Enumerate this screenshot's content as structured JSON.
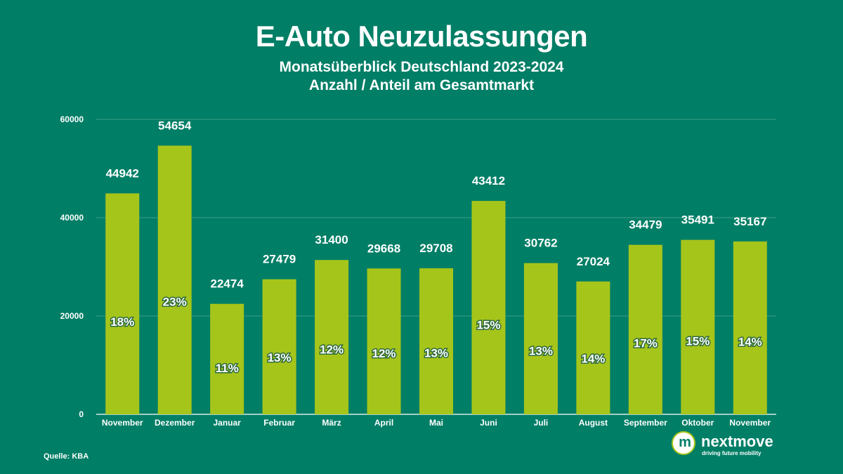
{
  "header": {
    "title": "E-Auto Neuzulassungen",
    "subtitle_line1": "Monatsüberblick Deutschland 2023-2024",
    "subtitle_line2": "Anzahl / Anteil am Gesamtmarkt"
  },
  "chart_data": {
    "type": "bar",
    "title": "E-Auto Neuzulassungen",
    "categories": [
      "November",
      "Dezember",
      "Januar",
      "Februar",
      "März",
      "April",
      "Mai",
      "Juni",
      "Juli",
      "August",
      "September",
      "Oktober",
      "November"
    ],
    "series": [
      {
        "name": "Anzahl",
        "values": [
          44942,
          54654,
          22474,
          27479,
          31400,
          29668,
          29708,
          43412,
          30762,
          27024,
          34479,
          35491,
          35167
        ]
      },
      {
        "name": "Anteil am Gesamtmarkt",
        "values": [
          "18%",
          "23%",
          "11%",
          "13%",
          "12%",
          "12%",
          "13%",
          "15%",
          "13%",
          "14%",
          "17%",
          "15%",
          "14%"
        ]
      }
    ],
    "yticks": [
      0,
      20000,
      40000,
      60000
    ],
    "ylim": [
      0,
      60000
    ],
    "xlabel": "",
    "ylabel": "",
    "grid": true,
    "colors": {
      "bar": "#a6c51a",
      "background": "#007e66",
      "gridline": "#3f9c85"
    }
  },
  "footer": {
    "source": "Quelle: KBA",
    "logo_letter": "m",
    "logo_name": "nextmove",
    "logo_tagline": "driving future mobility"
  }
}
